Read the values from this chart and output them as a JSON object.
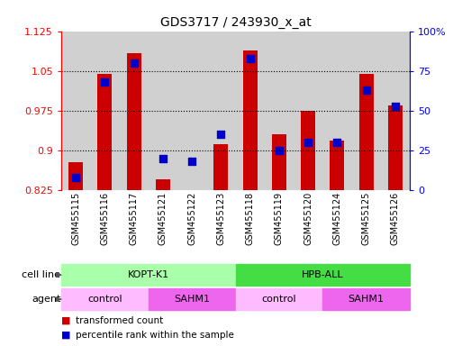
{
  "title": "GDS3717 / 243930_x_at",
  "samples": [
    "GSM455115",
    "GSM455116",
    "GSM455117",
    "GSM455121",
    "GSM455122",
    "GSM455123",
    "GSM455118",
    "GSM455119",
    "GSM455120",
    "GSM455124",
    "GSM455125",
    "GSM455126"
  ],
  "red_values": [
    0.878,
    1.045,
    1.083,
    0.845,
    0.826,
    0.912,
    1.088,
    0.93,
    0.975,
    0.918,
    1.045,
    0.985
  ],
  "blue_values_pct": [
    8,
    68,
    80,
    20,
    18,
    35,
    83,
    25,
    30,
    30,
    63,
    53
  ],
  "y_min": 0.825,
  "y_max": 1.125,
  "y_ticks_left": [
    0.825,
    0.9,
    0.975,
    1.05,
    1.125
  ],
  "y_ticks_right_pct": [
    0,
    25,
    50,
    75,
    100
  ],
  "grid_lines": [
    1.05,
    0.975,
    0.9
  ],
  "cell_line_groups": [
    {
      "label": "KOPT-K1",
      "start": 0,
      "end": 6,
      "color": "#AAFFAA"
    },
    {
      "label": "HPB-ALL",
      "start": 6,
      "end": 12,
      "color": "#44DD44"
    }
  ],
  "agent_groups": [
    {
      "label": "control",
      "start": 0,
      "end": 3,
      "color": "#FFBBFF"
    },
    {
      "label": "SAHM1",
      "start": 3,
      "end": 6,
      "color": "#EE66EE"
    },
    {
      "label": "control",
      "start": 6,
      "end": 9,
      "color": "#FFBBFF"
    },
    {
      "label": "SAHM1",
      "start": 9,
      "end": 12,
      "color": "#EE66EE"
    }
  ],
  "bar_color": "#CC0000",
  "dot_color": "#0000CC",
  "bar_width": 0.5,
  "dot_size": 35,
  "cell_line_label": "cell line",
  "agent_label": "agent",
  "legend_red": "transformed count",
  "legend_blue": "percentile rank within the sample",
  "xtick_bg_color": "#D0D0D0"
}
